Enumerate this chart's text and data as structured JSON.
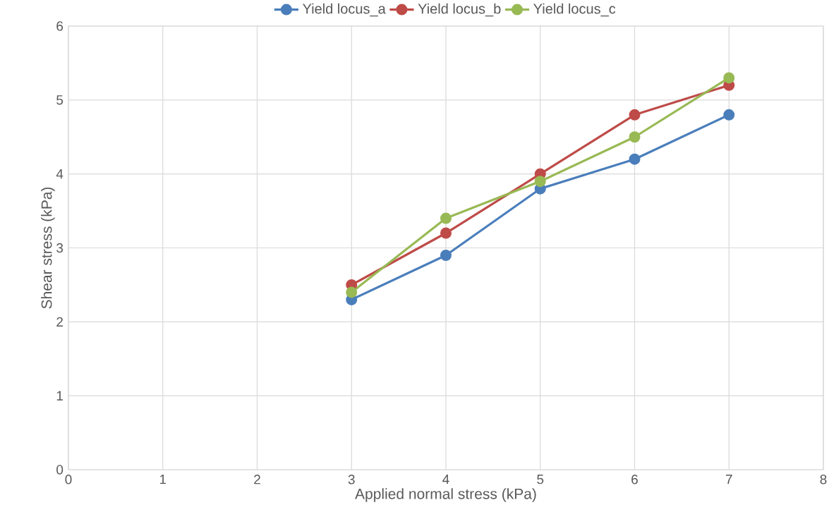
{
  "chart_data": {
    "type": "line",
    "xlabel": "Applied normal stress (kPa)",
    "ylabel": "Shear stress (kPa)",
    "x": [
      3,
      4,
      5,
      6,
      7
    ],
    "series": [
      {
        "name": "Yield locus_a",
        "color": "#4a7ebb",
        "values": [
          2.3,
          2.9,
          3.8,
          4.2,
          4.8
        ]
      },
      {
        "name": "Yield locus_b",
        "color": "#be4b48",
        "values": [
          2.5,
          3.2,
          4.0,
          4.8,
          5.2
        ]
      },
      {
        "name": "Yield locus_c",
        "color": "#98b954",
        "values": [
          2.4,
          3.4,
          3.9,
          4.5,
          5.3
        ]
      }
    ],
    "xlim": [
      0,
      8
    ],
    "xticks": [
      0,
      1,
      2,
      3,
      4,
      5,
      6,
      7,
      8
    ],
    "ylim": [
      0,
      6
    ],
    "yticks": [
      0,
      1,
      2,
      3,
      4,
      5,
      6
    ],
    "grid": true,
    "legend": "top",
    "marker": "circle",
    "line_style": "solid"
  }
}
